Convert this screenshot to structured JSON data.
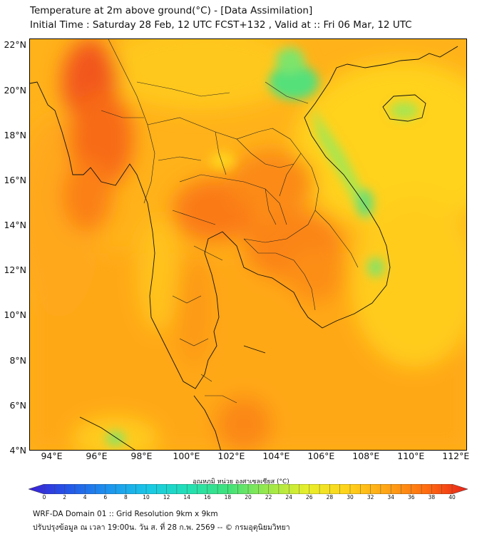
{
  "title_line1": "Temperature at 2m above ground(°C) - [Data Assimilation]",
  "title_line2": "Initial Time : Saturday 28 Feb, 12 UTC FCST+132 , Valid at :: Fri 06 Mar, 12 UTC",
  "map": {
    "lat_ticks": [
      "22°N",
      "20°N",
      "18°N",
      "16°N",
      "14°N",
      "12°N",
      "10°N",
      "8°N",
      "6°N",
      "4°N"
    ],
    "lon_ticks": [
      "94°E",
      "96°E",
      "98°E",
      "100°E",
      "102°E",
      "104°E",
      "106°E",
      "108°E",
      "110°E",
      "112°E"
    ],
    "lat_range": [
      4,
      22.3
    ],
    "lon_range": [
      93.0,
      112.5
    ]
  },
  "colorbar": {
    "label": "อุณหภูมิ หน่วย องศาเซลเซียส (°C)",
    "ticks": [
      "0",
      "2",
      "4",
      "6",
      "8",
      "10",
      "12",
      "14",
      "16",
      "18",
      "20",
      "22",
      "24",
      "26",
      "28",
      "30",
      "32",
      "34",
      "36",
      "38",
      "40"
    ],
    "min": 0,
    "max": 40,
    "colors": [
      "#3a1fd6",
      "#2457e8",
      "#1d94ee",
      "#19c8e6",
      "#22e0b4",
      "#3fe27a",
      "#9be84a",
      "#e8ee2a",
      "#ffd21a",
      "#ffa315",
      "#ff6a10",
      "#e8221a"
    ]
  },
  "footer": {
    "line1": "WRF-DA Domain 01 :: Grid Resolution 9km x 9km",
    "line2": "ปรับปรุงข้อมูล ณ เวลา 19:00น. วัน ส. ที่ 28 ก.พ. 2569 -- © กรมอุตุนิยมวิทยา"
  }
}
